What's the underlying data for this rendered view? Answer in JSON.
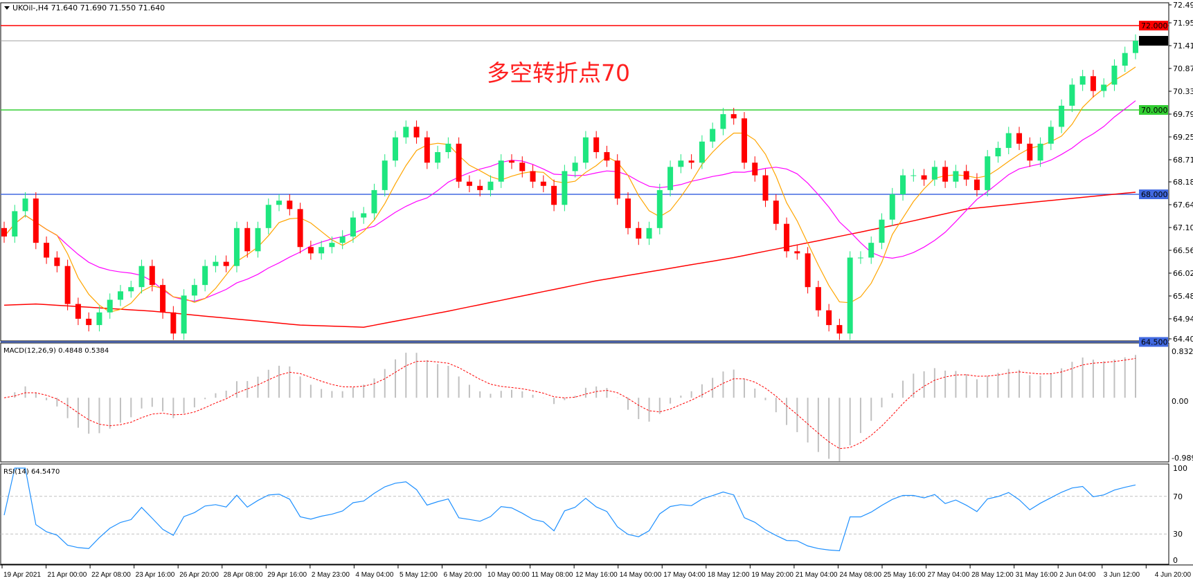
{
  "header": {
    "symbol_label": "UKOil-,H4  71.640 71.690 71.550 71.640"
  },
  "annotation": {
    "text": "多空转折点70",
    "color": "#ff2020"
  },
  "macd_label": "MACD(12,26,9) 0.4848 0.5384",
  "rsi_label": "RSI(14) 64.5470",
  "colors": {
    "bull": "#1ee67f",
    "bear": "#ff0000",
    "ma_fast": "#ffa500",
    "ma_mid": "#ff00ff",
    "ma_slow": "#ff0000",
    "macd_hist": "#c0c0c0",
    "macd_signal": "#ff0000",
    "rsi": "#1e90ff"
  },
  "chart_data": [
    {
      "type": "candlestick",
      "symbol": "UKOil-",
      "timeframe": "H4",
      "ylim": [
        64.405,
        72.49
      ],
      "y_ticks": [
        "72.490",
        "71.950",
        "71.410",
        "70.870",
        "70.330",
        "69.790",
        "69.250",
        "68.710",
        "68.185",
        "67.645",
        "67.105",
        "66.565",
        "66.025",
        "65.485",
        "64.945",
        "64.405"
      ],
      "x_ticks": [
        "19 Apr 2021",
        "21 Apr 00:00",
        "22 Apr 08:00",
        "23 Apr 16:00",
        "26 Apr 20:00",
        "28 Apr 08:00",
        "29 Apr 16:00",
        "2 May 23:00",
        "4 May 04:00",
        "5 May 12:00",
        "6 May 20:00",
        "10 May 00:00",
        "11 May 08:00",
        "12 May 16:00",
        "14 May 00:00",
        "17 May 04:00",
        "18 May 12:00",
        "19 May 20:00",
        "21 May 04:00",
        "24 May 08:00",
        "25 May 16:00",
        "27 May 04:00",
        "28 May 12:00",
        "31 May 16:00",
        "2 Jun 04:00",
        "3 Jun 12:00",
        "4 Jun 20:00"
      ],
      "close": [
        67.0,
        67.6,
        67.9,
        66.85,
        66.5,
        66.3,
        65.4,
        65.05,
        64.9,
        65.2,
        65.5,
        65.7,
        65.8,
        66.3,
        65.85,
        65.2,
        64.7,
        65.6,
        65.85,
        66.3,
        66.4,
        66.3,
        67.2,
        66.65,
        67.2,
        67.75,
        67.85,
        67.65,
        66.75,
        66.6,
        66.75,
        66.85,
        67.0,
        67.45,
        67.55,
        68.1,
        68.8,
        69.35,
        69.6,
        69.35,
        68.75,
        69.0,
        69.2,
        68.3,
        68.2,
        68.1,
        68.3,
        68.8,
        68.75,
        68.55,
        68.3,
        68.2,
        67.75,
        68.55,
        68.75,
        69.35,
        69.0,
        68.8,
        67.9,
        67.2,
        66.95,
        67.2,
        68.1,
        68.65,
        68.8,
        68.75,
        69.25,
        69.55,
        69.9,
        69.8,
        68.75,
        68.45,
        67.85,
        67.3,
        66.65,
        66.6,
        65.8,
        65.25,
        64.9,
        64.7,
        66.5,
        66.5,
        66.85,
        67.4,
        68.0,
        68.45,
        68.45,
        68.35,
        68.65,
        68.3,
        68.55,
        68.35,
        68.1,
        68.9,
        69.1,
        69.45,
        69.2,
        68.8,
        69.2,
        69.6,
        70.1,
        70.6,
        70.8,
        70.45,
        70.6,
        71.05,
        71.35,
        71.64
      ],
      "ma_slow": [
        [
          0,
          65.37
        ],
        [
          3,
          65.4
        ],
        [
          14,
          65.23
        ],
        [
          28,
          64.9
        ],
        [
          34,
          64.85
        ],
        [
          42,
          65.23
        ],
        [
          56,
          65.95
        ],
        [
          69,
          66.5
        ],
        [
          77,
          66.9
        ],
        [
          84,
          67.26
        ],
        [
          91,
          67.65
        ],
        [
          98,
          67.83
        ],
        [
          107,
          68.05
        ]
      ],
      "horizontal_lines": [
        {
          "price": "72.000",
          "value": 72.0,
          "color": "#ff0000"
        },
        {
          "price": "71.640",
          "value": 71.64,
          "color": "#000000",
          "line_color": "#a0a0a0"
        },
        {
          "price": "70.000",
          "value": 70.0,
          "color": "#32cd32"
        },
        {
          "price": "68.000",
          "value": 68.0,
          "color": "#4169e1"
        },
        {
          "price": "64.500",
          "value": 64.5,
          "color": "#4169e1"
        }
      ]
    },
    {
      "type": "bar+line",
      "name": "MACD(12,26,9)",
      "ylim": [
        -0.9897,
        0.8326
      ],
      "y_ticks": [
        "0.8326",
        "0.00",
        "-0.9897"
      ]
    },
    {
      "type": "line",
      "name": "RSI(14)",
      "ylim": [
        0,
        100
      ],
      "y_ticks": [
        "100",
        "70",
        "30",
        "0"
      ],
      "levels": [
        70,
        30
      ]
    }
  ]
}
